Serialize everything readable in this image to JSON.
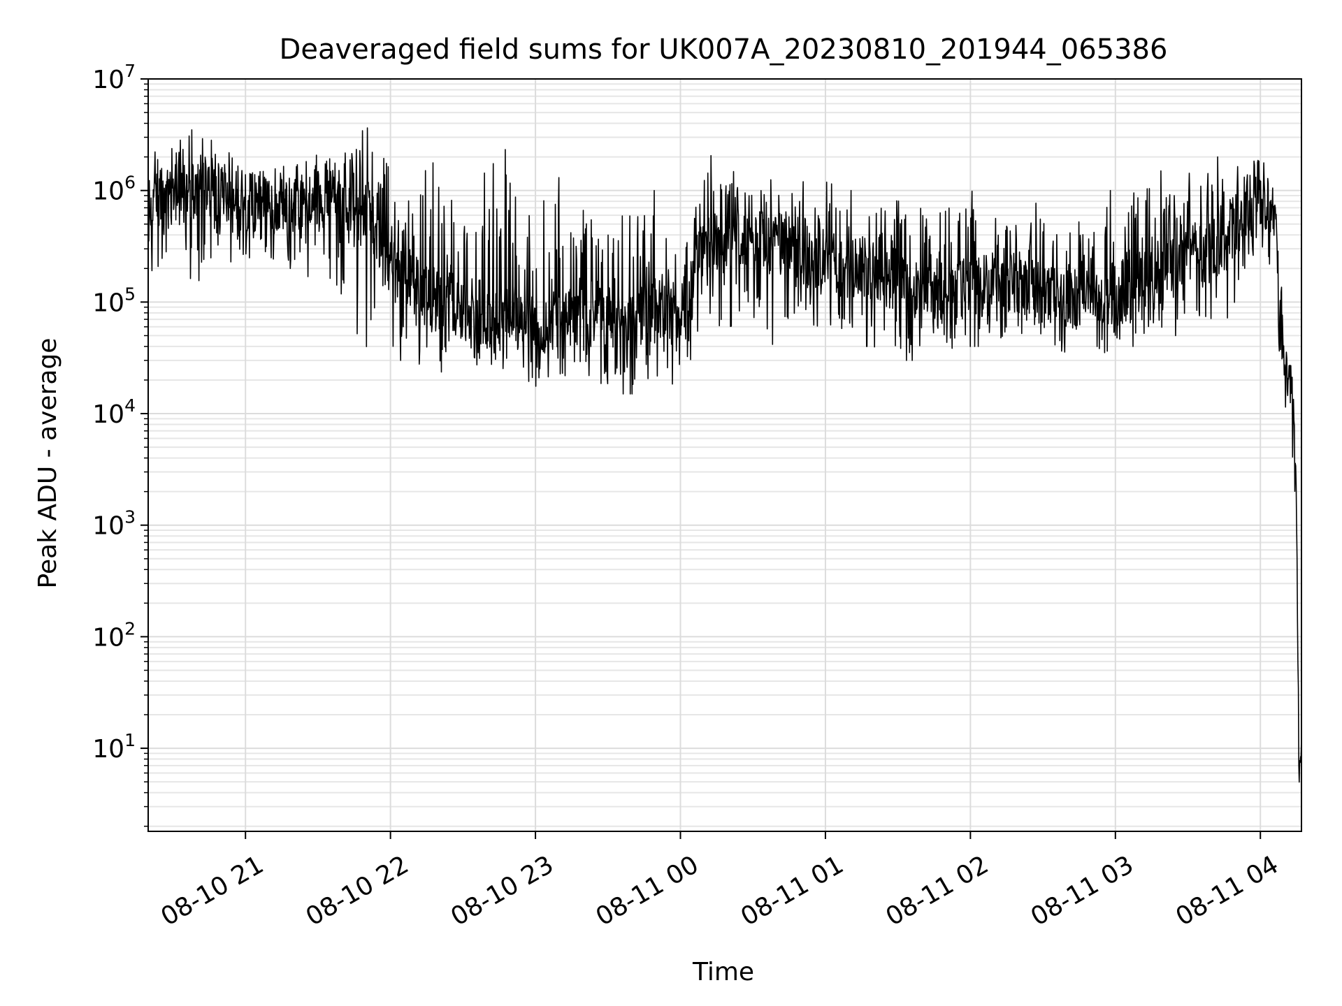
{
  "chart_data": {
    "type": "line",
    "title": "Deaveraged field sums for UK007A_20230810_201944_065386",
    "xlabel": "Time",
    "ylabel": "Peak ADU - average",
    "yscale": "log",
    "ylim": [
      1.8,
      10000000
    ],
    "xlim": [
      "2023-08-10 20:19:44",
      "2023-08-11 04:17:00"
    ],
    "grid": true,
    "legend": "none",
    "line_color": "#000000",
    "x_ticks": [
      {
        "t": "2023-08-10 21:00",
        "label": "08-10 21"
      },
      {
        "t": "2023-08-10 22:00",
        "label": "08-10 22"
      },
      {
        "t": "2023-08-10 23:00",
        "label": "08-10 23"
      },
      {
        "t": "2023-08-11 00:00",
        "label": "08-11 00"
      },
      {
        "t": "2023-08-11 01:00",
        "label": "08-11 01"
      },
      {
        "t": "2023-08-11 02:00",
        "label": "08-11 02"
      },
      {
        "t": "2023-08-11 03:00",
        "label": "08-11 03"
      },
      {
        "t": "2023-08-11 04:00",
        "label": "08-11 04"
      }
    ],
    "y_ticks": [
      {
        "value": 10,
        "base": "10",
        "exp": "1"
      },
      {
        "value": 100,
        "base": "10",
        "exp": "2"
      },
      {
        "value": 1000,
        "base": "10",
        "exp": "3"
      },
      {
        "value": 10000,
        "base": "10",
        "exp": "4"
      },
      {
        "value": 100000,
        "base": "10",
        "exp": "5"
      },
      {
        "value": 1000000,
        "base": "10",
        "exp": "6"
      },
      {
        "value": 10000000,
        "base": "10",
        "exp": "7"
      }
    ],
    "series": [
      {
        "x": [
          "2023-08-10 20:20",
          "2023-08-10 20:30",
          "2023-08-10 20:40",
          "2023-08-10 20:50",
          "2023-08-10 21:00",
          "2023-08-10 21:10",
          "2023-08-10 21:20",
          "2023-08-10 21:30",
          "2023-08-10 21:40",
          "2023-08-10 21:50",
          "2023-08-10 22:00",
          "2023-08-10 22:10",
          "2023-08-10 22:20",
          "2023-08-10 22:30",
          "2023-08-10 22:40",
          "2023-08-10 22:50",
          "2023-08-10 23:00",
          "2023-08-10 23:10",
          "2023-08-10 23:20",
          "2023-08-10 23:30",
          "2023-08-10 23:40",
          "2023-08-10 23:50",
          "2023-08-11 00:00",
          "2023-08-11 00:10",
          "2023-08-11 00:20",
          "2023-08-11 00:30",
          "2023-08-11 00:40",
          "2023-08-11 00:50",
          "2023-08-11 01:00",
          "2023-08-11 01:10",
          "2023-08-11 01:20",
          "2023-08-11 01:30",
          "2023-08-11 01:40",
          "2023-08-11 01:50",
          "2023-08-11 02:00",
          "2023-08-11 02:10",
          "2023-08-11 02:20",
          "2023-08-11 02:30",
          "2023-08-11 02:40",
          "2023-08-11 02:50",
          "2023-08-11 03:00",
          "2023-08-11 03:10",
          "2023-08-11 03:20",
          "2023-08-11 03:30",
          "2023-08-11 03:40",
          "2023-08-11 03:50",
          "2023-08-11 04:00",
          "2023-08-11 04:03",
          "2023-08-11 04:06",
          "2023-08-11 04:09",
          "2023-08-11 04:12",
          "2023-08-11 04:14",
          "2023-08-11 04:15",
          "2023-08-11 04:16",
          "2023-08-11 04:17"
        ],
        "median": [
          700000,
          900000,
          1000000,
          950000,
          800000,
          750000,
          700000,
          800000,
          900000,
          700000,
          200000,
          150000,
          100000,
          80000,
          70000,
          80000,
          60000,
          70000,
          80000,
          70000,
          70000,
          80000,
          90000,
          350000,
          300000,
          350000,
          350000,
          250000,
          250000,
          200000,
          200000,
          150000,
          120000,
          100000,
          150000,
          150000,
          150000,
          120000,
          100000,
          120000,
          120000,
          150000,
          180000,
          250000,
          300000,
          500000,
          700000,
          800000,
          500000,
          50000,
          20000,
          8000,
          1500,
          4,
          12
        ],
        "low": [
          150000,
          200000,
          150000,
          250000,
          200000,
          200000,
          200000,
          150000,
          80000,
          40000,
          30000,
          30000,
          20000,
          20000,
          20000,
          20000,
          15000,
          15000,
          15000,
          15000,
          15000,
          15000,
          15000,
          40000,
          50000,
          50000,
          40000,
          40000,
          40000,
          40000,
          40000,
          30000,
          30000,
          30000,
          40000,
          40000,
          40000,
          40000,
          30000,
          30000,
          40000,
          40000,
          50000,
          50000,
          60000,
          80000,
          200000,
          200000,
          100000,
          15000,
          6000,
          2000,
          1000,
          4,
          10
        ],
        "high": [
          2000000,
          3000000,
          5000000,
          3000000,
          2000000,
          1800000,
          2000000,
          2500000,
          2000000,
          3800000,
          1500000,
          1200000,
          2000000,
          1000000,
          1500000,
          2700000,
          1500000,
          1300000,
          1500000,
          800000,
          1000000,
          1000000,
          1000000,
          2300000,
          1500000,
          1400000,
          1200000,
          1200000,
          1200000,
          1000000,
          1000000,
          800000,
          1000000,
          1500000,
          1000000,
          800000,
          700000,
          800000,
          600000,
          1000000,
          1000000,
          1500000,
          1500000,
          1400000,
          2000000,
          2000000,
          2800000,
          1500000,
          1000000,
          150000,
          60000,
          15000,
          2000,
          5,
          14
        ]
      }
    ]
  }
}
